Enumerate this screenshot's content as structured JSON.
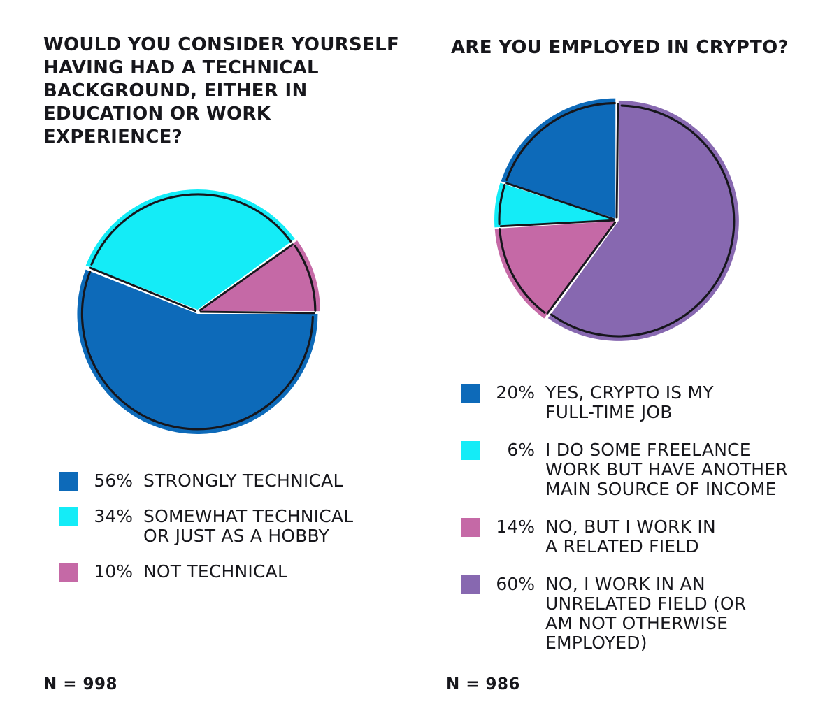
{
  "page": {
    "background_color": "#ffffff",
    "text_color": "#17171c",
    "outline_color": "#16161c"
  },
  "charts": [
    {
      "title": "WOULD YOU CONSIDER YOURSELF\nHAVING HAD A TECHNICAL\nBACKGROUND, EITHER IN\nEDUCATION OR WORK\nEXPERIENCE?",
      "sample_label": "N = 998"
    },
    {
      "title": "ARE YOU EMPLOYED IN CRYPTO?",
      "sample_label": "N = 986"
    }
  ],
  "chart_data": [
    {
      "type": "pie",
      "title": "WOULD YOU CONSIDER YOURSELF HAVING HAD A TECHNICAL BACKGROUND, EITHER IN EDUCATION OR WORK EXPERIENCE?",
      "n": 998,
      "slices": [
        {
          "label": "STRONGLY TECHNICAL",
          "label_lines": [
            "STRONGLY TECHNICAL"
          ],
          "value_pct": 56,
          "color": "#0d6ab9"
        },
        {
          "label": "SOMEWHAT TECHNICAL OR JUST AS A HOBBY",
          "label_lines": [
            "SOMEWHAT TECHNICAL",
            "OR JUST AS A HOBBY"
          ],
          "value_pct": 34,
          "color": "#14ecf7"
        },
        {
          "label": "NOT TECHNICAL",
          "label_lines": [
            "NOT TECHNICAL"
          ],
          "value_pct": 10,
          "color": "#c569a6"
        }
      ],
      "layout": {
        "style": "hand-drawn",
        "start_angle_clockwise_from_top_deg": 54,
        "draw_order": [
          2,
          0,
          1
        ],
        "legend_position": "below",
        "exploded_white_gaps": true
      }
    },
    {
      "type": "pie",
      "title": "ARE YOU EMPLOYED IN CRYPTO?",
      "n": 986,
      "slices": [
        {
          "label": "YES, CRYPTO IS MY FULL-TIME JOB",
          "label_lines": [
            "YES, CRYPTO IS MY",
            "FULL-TIME JOB"
          ],
          "value_pct": 20,
          "color": "#0d6ab9"
        },
        {
          "label": "I DO SOME FREELANCE WORK BUT HAVE ANOTHER MAIN SOURCE OF INCOME",
          "label_lines": [
            "I DO SOME FREELANCE",
            "WORK BUT HAVE ANOTHER",
            "MAIN SOURCE OF INCOME"
          ],
          "value_pct": 6,
          "color": "#14ecf7"
        },
        {
          "label": "NO, BUT I WORK IN A RELATED FIELD",
          "label_lines": [
            "NO, BUT I WORK IN",
            "A RELATED FIELD"
          ],
          "value_pct": 14,
          "color": "#c569a6"
        },
        {
          "label": "NO, I WORK IN AN UNRELATED FIELD (OR AM NOT OTHERWISE EMPLOYED)",
          "label_lines": [
            "NO, I WORK IN AN",
            "UNRELATED FIELD (OR",
            "AM NOT OTHERWISE",
            "EMPLOYED)"
          ],
          "value_pct": 60,
          "color": "#8768b0"
        }
      ],
      "layout": {
        "style": "hand-drawn",
        "start_angle_clockwise_from_top_deg": 0,
        "draw_order": [
          3,
          2,
          1,
          0
        ],
        "legend_position": "below",
        "exploded_white_gaps": true
      }
    }
  ]
}
